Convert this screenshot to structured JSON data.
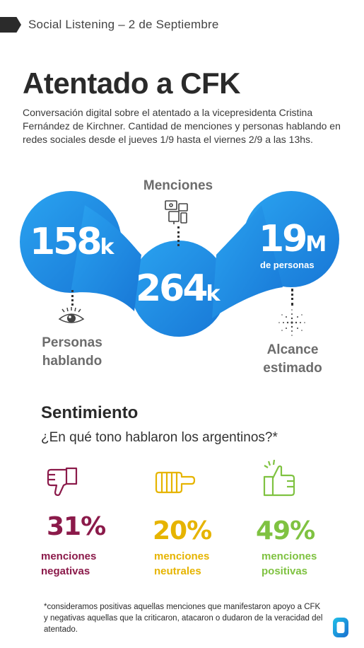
{
  "header": {
    "text": "Social Listening – 2 de Septiembre"
  },
  "title": "Atentado a CFK",
  "description": "Conversación digital sobre el atentado a la vicepresidenta Cristina Fernández de Kirchner. Cantidad de menciones y personas hablando en redes sociales desde el jueves 1/9 hasta el viernes 2/9 a las 13hs.",
  "metrics": {
    "personas": {
      "value": "158",
      "unit": "k",
      "label_line1": "Personas",
      "label_line2": "hablando",
      "icon": "eye-icon"
    },
    "menciones": {
      "value": "264",
      "unit": "k",
      "label": "Menciones",
      "icon": "devices-icon"
    },
    "alcance": {
      "value": "19",
      "unit": "M",
      "sub": "de personas",
      "label_line1": "Alcance",
      "label_line2": "estimado",
      "icon": "radar-dots-icon"
    }
  },
  "sentiment": {
    "title": "Sentimiento",
    "question": "¿En qué tono hablaron los argentinos?*",
    "items": [
      {
        "percent": "31%",
        "label_line1": "menciones",
        "label_line2": "negativas",
        "color": "#8b1a4a",
        "icon": "thumbs-down-icon"
      },
      {
        "percent": "20%",
        "label_line1": "menciones",
        "label_line2": "neutrales",
        "color": "#e6b400",
        "icon": "sideways-thumb-icon"
      },
      {
        "percent": "49%",
        "label_line1": "menciones",
        "label_line2": "positivas",
        "color": "#7fc241",
        "icon": "thumbs-up-icon"
      }
    ]
  },
  "footnote": "*consideramos positivas aquellas menciones que manifestaron apoyo a CFK y negativas aquellas que la criticaron, atacaron o dudaron de la veracidad del atentado.",
  "colors": {
    "blue": "#1f8fe5",
    "gray": "#6c6c6c"
  }
}
